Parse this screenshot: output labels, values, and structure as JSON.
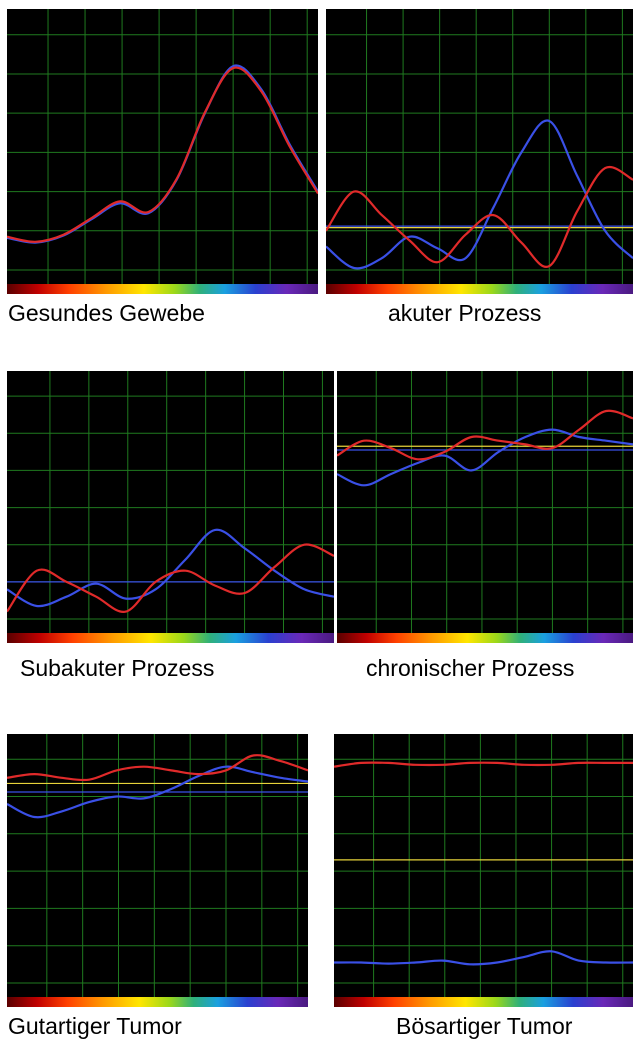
{
  "chart_data": [
    {
      "type": "line",
      "caption": "Gesundes Gewebe",
      "series": [
        {
          "color": "#3a50e6",
          "values": [
            0.82,
            0.7,
            0.88,
            1.3,
            1.7,
            1.45,
            2.3,
            4.0,
            5.2,
            4.6,
            3.2,
            2.0
          ]
        },
        {
          "color": "#e02a2a",
          "values": [
            0.85,
            0.72,
            0.9,
            1.33,
            1.75,
            1.48,
            2.32,
            4.02,
            5.15,
            4.55,
            3.15,
            1.95
          ]
        }
      ],
      "hlines": []
    },
    {
      "type": "line",
      "caption": "akuter Prozess",
      "series": [
        {
          "color": "#3a50e6",
          "values": [
            0.6,
            0.05,
            0.3,
            0.85,
            0.55,
            0.3,
            1.6,
            3.0,
            3.8,
            2.4,
            1.0,
            0.3
          ]
        },
        {
          "color": "#e02a2a",
          "values": [
            1.0,
            2.0,
            1.4,
            0.75,
            0.2,
            0.9,
            1.4,
            0.7,
            0.1,
            1.5,
            2.6,
            2.3
          ]
        }
      ],
      "hlines": [
        {
          "color": "#3a50e6",
          "value": 1.12
        },
        {
          "color": "#e6d23a",
          "value": 1.08
        }
      ]
    },
    {
      "type": "line",
      "caption": "Subakuter Prozess",
      "series": [
        {
          "color": "#3a50e6",
          "values": [
            0.8,
            0.35,
            0.6,
            0.95,
            0.55,
            0.8,
            1.6,
            2.4,
            1.9,
            1.3,
            0.8,
            0.6
          ]
        },
        {
          "color": "#e02a2a",
          "values": [
            0.2,
            1.3,
            1.0,
            0.6,
            0.2,
            1.0,
            1.3,
            0.9,
            0.7,
            1.4,
            2.0,
            1.7
          ]
        }
      ],
      "hlines": [
        {
          "color": "#3a50e6",
          "value": 1.0
        }
      ]
    },
    {
      "type": "line",
      "caption": "chronischer Prozess",
      "series": [
        {
          "color": "#3a50e6",
          "values": [
            3.9,
            3.6,
            3.9,
            4.2,
            4.4,
            4.0,
            4.5,
            4.9,
            5.1,
            4.9,
            4.8,
            4.7
          ]
        },
        {
          "color": "#e02a2a",
          "values": [
            4.4,
            4.8,
            4.6,
            4.3,
            4.5,
            4.9,
            4.8,
            4.7,
            4.6,
            5.1,
            5.6,
            5.4
          ]
        }
      ],
      "hlines": [
        {
          "color": "#e6d23a",
          "value": 4.65
        },
        {
          "color": "#3a50e6",
          "value": 4.55
        }
      ]
    },
    {
      "type": "line",
      "caption": "Gutartiger Tumor",
      "series": [
        {
          "color": "#3a50e6",
          "values": [
            4.8,
            4.45,
            4.6,
            4.85,
            5.0,
            4.95,
            5.2,
            5.55,
            5.8,
            5.65,
            5.5,
            5.4
          ]
        },
        {
          "color": "#e02a2a",
          "values": [
            5.5,
            5.6,
            5.5,
            5.45,
            5.7,
            5.8,
            5.7,
            5.6,
            5.7,
            6.1,
            5.95,
            5.7
          ]
        }
      ],
      "hlines": [
        {
          "color": "#e6d23a",
          "value": 5.35
        },
        {
          "color": "#3a50e6",
          "value": 5.12
        }
      ]
    },
    {
      "type": "line",
      "caption": "Bösartiger Tumor",
      "series": [
        {
          "color": "#3a50e6",
          "values": [
            0.55,
            0.55,
            0.52,
            0.55,
            0.6,
            0.5,
            0.55,
            0.7,
            0.85,
            0.6,
            0.55,
            0.55
          ]
        },
        {
          "color": "#e02a2a",
          "values": [
            5.8,
            5.9,
            5.9,
            5.85,
            5.85,
            5.9,
            5.9,
            5.85,
            5.85,
            5.9,
            5.9,
            5.9
          ]
        }
      ],
      "hlines": [
        {
          "color": "#e6d23a",
          "value": 3.3
        }
      ]
    }
  ]
}
